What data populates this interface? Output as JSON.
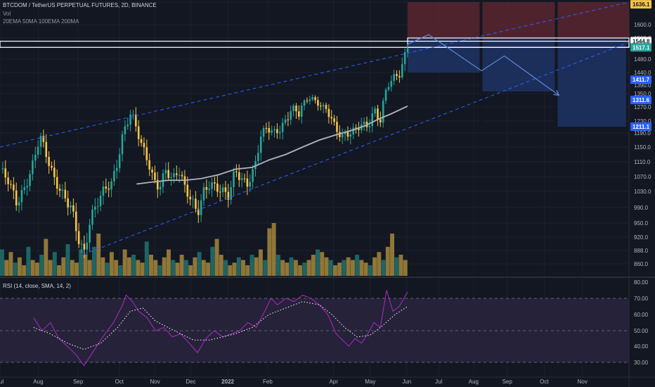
{
  "header": {
    "symbol_line": "BTCDOM / TetherUS PERPETUAL FUTURES, 2D, BINANCE",
    "vol_label": "Vol",
    "ema_legend": "20EMA 50MA 100EMA 200MA"
  },
  "rsi": {
    "legend": "RSI (14, close, SMA, 14, 2)",
    "axis_labels": [
      "80.00",
      "70.00",
      "60.00",
      "50.00",
      "40.00",
      "30.00"
    ],
    "axis_values": [
      80,
      70,
      60,
      50,
      40,
      30
    ],
    "band": [
      30,
      70
    ]
  },
  "colors": {
    "background": "#131722",
    "up": "#26a69a",
    "down": "#f7c548",
    "trend_line": "#2962ff",
    "ma": "#b2b5be",
    "rsi": "#9c27b0",
    "rsi_band": "#2a2540",
    "stop_zone": "#5b2630",
    "target_zone": "#1e3160",
    "projection": "#5b86d6",
    "white_box": "#ffffff"
  },
  "chart_data": {
    "type": "candlestick",
    "price_axis_labels": [
      "1640.0",
      "1600.0",
      "1560.0",
      "1520.0",
      "1480.0",
      "1440.0",
      "1390.0",
      "1350.0",
      "1270.0",
      "1230.0",
      "1190.0",
      "1150.0",
      "1110.0",
      "1070.0",
      "1030.0",
      "990.0",
      "950.0",
      "920.0",
      "888.0",
      "860.0"
    ],
    "price_axis_values": [
      1640,
      1600,
      1560,
      1520,
      1480,
      1440,
      1390,
      1350,
      1270,
      1230,
      1190,
      1150,
      1110,
      1070,
      1030,
      990,
      950,
      920,
      888,
      860
    ],
    "price_tags": [
      {
        "label": "1636.1",
        "value": 1636.1,
        "color": "#f7c548",
        "text_color": "#131722"
      },
      {
        "label": "1544.8",
        "value": 1544.8,
        "color": "#ffffff",
        "text_color": "#131722"
      },
      {
        "label": "1517.1",
        "value": 1517.1,
        "color": "#26a69a",
        "text_color": "#ffffff"
      },
      {
        "label": "1411.7",
        "value": 1411.7,
        "color": "#2962ff",
        "text_color": "#ffffff"
      },
      {
        "label": "1311.6",
        "value": 1311.6,
        "color": "#2962ff",
        "text_color": "#ffffff"
      },
      {
        "label": "1211.1",
        "value": 1211.1,
        "color": "#2962ff",
        "text_color": "#ffffff"
      }
    ],
    "time_axis_labels": [
      "Jul",
      "Aug",
      "Sep",
      "Oct",
      "Nov",
      "Dec",
      "2022",
      "Feb",
      "Apr",
      "May",
      "Jun",
      "Jul",
      "Aug",
      "Sep",
      "Oct",
      "Nov"
    ],
    "time_axis_positions": [
      0.0,
      0.091,
      0.186,
      0.284,
      0.369,
      0.454,
      0.542,
      0.637,
      0.794,
      0.881,
      0.968,
      1.044,
      1.127,
      1.207,
      1.295,
      1.386
    ],
    "close_path": [
      [
        0.0,
        1090
      ],
      [
        0.02,
        1060
      ],
      [
        0.04,
        1000
      ],
      [
        0.06,
        1040
      ],
      [
        0.08,
        1110
      ],
      [
        0.095,
        1185
      ],
      [
        0.11,
        1130
      ],
      [
        0.13,
        1060
      ],
      [
        0.15,
        1020
      ],
      [
        0.17,
        990
      ],
      [
        0.185,
        920
      ],
      [
        0.2,
        880
      ],
      [
        0.215,
        960
      ],
      [
        0.23,
        1000
      ],
      [
        0.25,
        1040
      ],
      [
        0.265,
        1050
      ],
      [
        0.28,
        1110
      ],
      [
        0.295,
        1200
      ],
      [
        0.31,
        1250
      ],
      [
        0.32,
        1230
      ],
      [
        0.335,
        1160
      ],
      [
        0.35,
        1120
      ],
      [
        0.365,
        1060
      ],
      [
        0.38,
        1040
      ],
      [
        0.395,
        1090
      ],
      [
        0.41,
        1060
      ],
      [
        0.425,
        1090
      ],
      [
        0.44,
        1040
      ],
      [
        0.455,
        1010
      ],
      [
        0.47,
        975
      ],
      [
        0.485,
        1030
      ],
      [
        0.5,
        1050
      ],
      [
        0.515,
        1040
      ],
      [
        0.53,
        1030
      ],
      [
        0.545,
        1020
      ],
      [
        0.56,
        1090
      ],
      [
        0.575,
        1060
      ],
      [
        0.59,
        1050
      ],
      [
        0.605,
        1090
      ],
      [
        0.62,
        1180
      ],
      [
        0.635,
        1210
      ],
      [
        0.65,
        1190
      ],
      [
        0.665,
        1200
      ],
      [
        0.68,
        1230
      ],
      [
        0.695,
        1270
      ],
      [
        0.71,
        1250
      ],
      [
        0.725,
        1300
      ],
      [
        0.74,
        1330
      ],
      [
        0.755,
        1290
      ],
      [
        0.77,
        1270
      ],
      [
        0.785,
        1250
      ],
      [
        0.8,
        1200
      ],
      [
        0.815,
        1180
      ],
      [
        0.83,
        1190
      ],
      [
        0.845,
        1200
      ],
      [
        0.86,
        1220
      ],
      [
        0.875,
        1210
      ],
      [
        0.89,
        1260
      ],
      [
        0.905,
        1230
      ],
      [
        0.92,
        1380
      ],
      [
        0.935,
        1420
      ],
      [
        0.95,
        1430
      ],
      [
        0.97,
        1520
      ]
    ],
    "ma_path": [
      [
        0.325,
        1050
      ],
      [
        0.36,
        1055
      ],
      [
        0.4,
        1060
      ],
      [
        0.44,
        1060
      ],
      [
        0.48,
        1065
      ],
      [
        0.52,
        1075
      ],
      [
        0.56,
        1090
      ],
      [
        0.6,
        1095
      ],
      [
        0.64,
        1115
      ],
      [
        0.68,
        1130
      ],
      [
        0.72,
        1150
      ],
      [
        0.76,
        1170
      ],
      [
        0.8,
        1185
      ],
      [
        0.84,
        1200
      ],
      [
        0.87,
        1215
      ],
      [
        0.9,
        1235
      ],
      [
        0.93,
        1250
      ],
      [
        0.97,
        1275
      ]
    ],
    "channel_upper": [
      [
        0.0,
        1150
      ],
      [
        1.5,
        1640
      ]
    ],
    "channel_lower": [
      [
        0.2,
        880
      ],
      [
        1.5,
        1540
      ]
    ],
    "stop_zone": {
      "x0": 0.97,
      "x1": 1.52,
      "y0": 1560,
      "y1": 1640
    },
    "target_zones": [
      {
        "x0": 0.97,
        "x1": 1.148,
        "y0": 1440,
        "y1": 1560
      },
      {
        "x0": 1.148,
        "x1": 1.327,
        "y0": 1360,
        "y1": 1560
      },
      {
        "x0": 1.327,
        "x1": 1.52,
        "y0": 1211.1,
        "y1": 1560
      }
    ],
    "entry_box": {
      "x0": 0.0,
      "x1": 1.52,
      "y0": 1517.1,
      "y1": 1544.8
    },
    "projection_path": [
      [
        0.97,
        1530
      ],
      [
        1.02,
        1570
      ],
      [
        1.146,
        1445
      ],
      [
        1.2,
        1490
      ],
      [
        1.33,
        1340
      ]
    ],
    "volume_profile": [
      0.5,
      0.3,
      0.45,
      0.25,
      0.35,
      0.2,
      0.55,
      0.3,
      0.25,
      0.4,
      0.7,
      0.3,
      0.45,
      0.2,
      0.35,
      0.6,
      0.3,
      0.25,
      0.5,
      0.4,
      0.3,
      0.55,
      0.8,
      0.35,
      0.25,
      0.45,
      0.3,
      0.2,
      0.5,
      0.35,
      0.4,
      0.3,
      0.25,
      0.65,
      0.4,
      0.3,
      0.2,
      0.35,
      0.5,
      0.3,
      0.25,
      0.4,
      0.3,
      0.2,
      0.35,
      0.45,
      0.3,
      0.25,
      0.55,
      0.7,
      0.4,
      0.3,
      0.2,
      0.25,
      0.35,
      0.3,
      0.2,
      0.4,
      0.35,
      0.5,
      0.3,
      0.9,
      1.0,
      0.4,
      0.3,
      0.25,
      0.35,
      0.3,
      0.2,
      0.25,
      0.3,
      0.4,
      0.5,
      0.45,
      0.35,
      0.3,
      0.2,
      0.25,
      0.3,
      0.35,
      0.3,
      0.4,
      0.3,
      0.25,
      0.2,
      0.35,
      0.45,
      0.3,
      0.55,
      0.8,
      0.35,
      0.4,
      0.3
    ],
    "rsi_path": [
      [
        0.08,
        58
      ],
      [
        0.1,
        50
      ],
      [
        0.12,
        55
      ],
      [
        0.14,
        45
      ],
      [
        0.16,
        40
      ],
      [
        0.18,
        35
      ],
      [
        0.2,
        28
      ],
      [
        0.215,
        34
      ],
      [
        0.23,
        40
      ],
      [
        0.25,
        48
      ],
      [
        0.27,
        55
      ],
      [
        0.29,
        65
      ],
      [
        0.3,
        72
      ],
      [
        0.315,
        68
      ],
      [
        0.33,
        62
      ],
      [
        0.35,
        58
      ],
      [
        0.37,
        50
      ],
      [
        0.39,
        52
      ],
      [
        0.41,
        46
      ],
      [
        0.43,
        48
      ],
      [
        0.45,
        42
      ],
      [
        0.47,
        36
      ],
      [
        0.49,
        45
      ],
      [
        0.51,
        50
      ],
      [
        0.53,
        46
      ],
      [
        0.55,
        48
      ],
      [
        0.57,
        50
      ],
      [
        0.59,
        55
      ],
      [
        0.61,
        52
      ],
      [
        0.63,
        62
      ],
      [
        0.645,
        70
      ],
      [
        0.66,
        66
      ],
      [
        0.68,
        70
      ],
      [
        0.7,
        68
      ],
      [
        0.72,
        72
      ],
      [
        0.74,
        70
      ],
      [
        0.76,
        66
      ],
      [
        0.78,
        60
      ],
      [
        0.8,
        48
      ],
      [
        0.815,
        44
      ],
      [
        0.83,
        40
      ],
      [
        0.845,
        45
      ],
      [
        0.86,
        42
      ],
      [
        0.875,
        48
      ],
      [
        0.89,
        55
      ],
      [
        0.905,
        52
      ],
      [
        0.92,
        75
      ],
      [
        0.935,
        62
      ],
      [
        0.95,
        65
      ],
      [
        0.97,
        74
      ]
    ],
    "rsi_ma_path": [
      [
        0.08,
        52
      ],
      [
        0.12,
        48
      ],
      [
        0.16,
        42
      ],
      [
        0.2,
        38
      ],
      [
        0.24,
        42
      ],
      [
        0.28,
        52
      ],
      [
        0.31,
        62
      ],
      [
        0.34,
        64
      ],
      [
        0.37,
        56
      ],
      [
        0.4,
        52
      ],
      [
        0.43,
        48
      ],
      [
        0.46,
        44
      ],
      [
        0.5,
        44
      ],
      [
        0.53,
        46
      ],
      [
        0.56,
        48
      ],
      [
        0.6,
        52
      ],
      [
        0.64,
        60
      ],
      [
        0.68,
        64
      ],
      [
        0.72,
        68
      ],
      [
        0.76,
        66
      ],
      [
        0.79,
        60
      ],
      [
        0.82,
        52
      ],
      [
        0.85,
        46
      ],
      [
        0.88,
        47
      ],
      [
        0.91,
        53
      ],
      [
        0.94,
        60
      ],
      [
        0.97,
        65
      ]
    ]
  }
}
